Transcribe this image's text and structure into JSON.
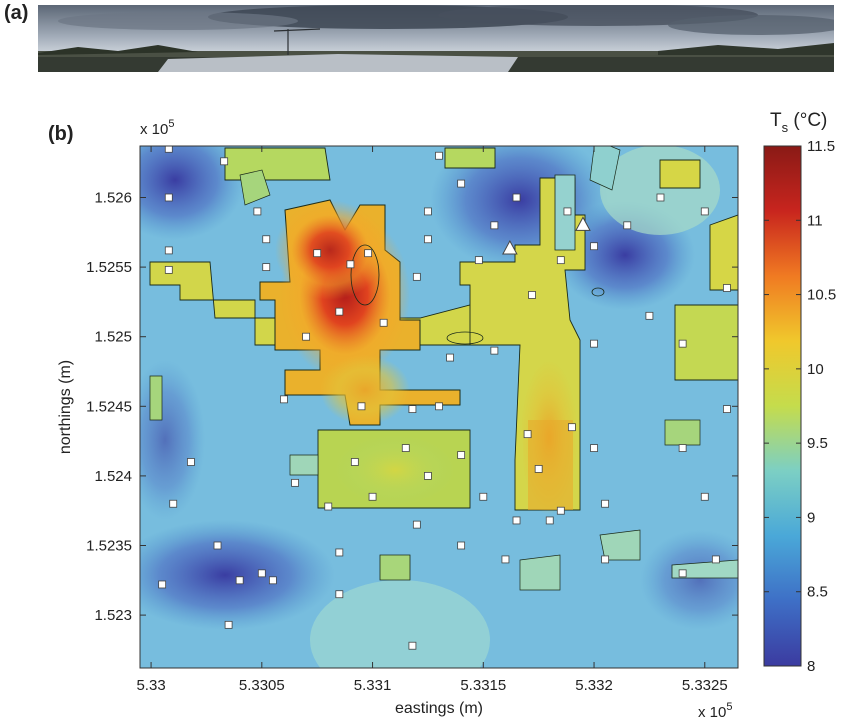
{
  "panel_a_label": "(a)",
  "panel_b_label": "(b)",
  "chart_data": {
    "type": "heatmap",
    "title": "",
    "xlabel": "eastings (m)",
    "ylabel": "northings (m)",
    "x_exponent_label": "x 10",
    "x_exponent_power": "5",
    "y_exponent_label": "x 10",
    "y_exponent_power": "5",
    "xlim": [
      5.32995,
      5.33265
    ],
    "ylim": [
      1.52262,
      1.52637
    ],
    "x_ticks": [
      5.33,
      5.3305,
      5.331,
      5.3315,
      5.332,
      5.3325
    ],
    "x_tick_labels": [
      "5.33",
      "5.3305",
      "5.331",
      "5.3315",
      "5.332",
      "5.3325"
    ],
    "y_ticks": [
      1.523,
      1.5235,
      1.524,
      1.5245,
      1.525,
      1.5255,
      1.526
    ],
    "y_tick_labels": [
      "1.523",
      "1.5235",
      "1.524",
      "1.5245",
      "1.525",
      "1.5255",
      "1.526"
    ],
    "colorbar": {
      "label_main": "T",
      "label_sub": "s",
      "label_unit": " (°C)",
      "min": 8,
      "max": 11.5,
      "ticks": [
        8,
        8.5,
        9,
        9.5,
        10,
        10.5,
        11,
        11.5
      ],
      "tick_labels": [
        "8",
        "8.5",
        "9",
        "9.5",
        "10",
        "10.5",
        "11",
        "11.5"
      ],
      "colormap": [
        "#3b3ba0",
        "#3e6fc6",
        "#4aa8d8",
        "#7ccfc4",
        "#c5dc4c",
        "#f0c82c",
        "#f07a22",
        "#c8251e",
        "#8a1a16"
      ]
    },
    "warm_core": {
      "x": 5.33093,
      "y": 1.52512,
      "value": 11.4
    },
    "stations_squares": [
      {
        "x": 5.33008,
        "y": 1.52635
      },
      {
        "x": 5.33033,
        "y": 1.52626
      },
      {
        "x": 5.33008,
        "y": 1.526
      },
      {
        "x": 5.33008,
        "y": 1.52562
      },
      {
        "x": 5.33008,
        "y": 1.52548
      },
      {
        "x": 5.33052,
        "y": 1.5257
      },
      {
        "x": 5.33048,
        "y": 1.5259
      },
      {
        "x": 5.33052,
        "y": 1.5255
      },
      {
        "x": 5.33075,
        "y": 1.5256
      },
      {
        "x": 5.3309,
        "y": 1.52552
      },
      {
        "x": 5.33098,
        "y": 1.5256
      },
      {
        "x": 5.3312,
        "y": 1.52543
      },
      {
        "x": 5.33085,
        "y": 1.52518
      },
      {
        "x": 5.33105,
        "y": 1.5251
      },
      {
        "x": 5.3307,
        "y": 1.525
      },
      {
        "x": 5.33125,
        "y": 1.5259
      },
      {
        "x": 5.3313,
        "y": 1.5263
      },
      {
        "x": 5.3314,
        "y": 1.5261
      },
      {
        "x": 5.33125,
        "y": 1.5257
      },
      {
        "x": 5.33155,
        "y": 1.5258
      },
      {
        "x": 5.33165,
        "y": 1.526
      },
      {
        "x": 5.33148,
        "y": 1.52555
      },
      {
        "x": 5.33172,
        "y": 1.5253
      },
      {
        "x": 5.33185,
        "y": 1.52555
      },
      {
        "x": 5.33188,
        "y": 1.5259
      },
      {
        "x": 5.332,
        "y": 1.52565
      },
      {
        "x": 5.33215,
        "y": 1.5258
      },
      {
        "x": 5.3323,
        "y": 1.526
      },
      {
        "x": 5.3325,
        "y": 1.5259
      },
      {
        "x": 5.3326,
        "y": 1.52535
      },
      {
        "x": 5.33225,
        "y": 1.52515
      },
      {
        "x": 5.3324,
        "y": 1.52495
      },
      {
        "x": 5.3326,
        "y": 1.52448
      },
      {
        "x": 5.332,
        "y": 1.52495
      },
      {
        "x": 5.33155,
        "y": 1.5249
      },
      {
        "x": 5.33135,
        "y": 1.52485
      },
      {
        "x": 5.3306,
        "y": 1.52455
      },
      {
        "x": 5.33095,
        "y": 1.5245
      },
      {
        "x": 5.33118,
        "y": 1.52448
      },
      {
        "x": 5.3313,
        "y": 1.5245
      },
      {
        "x": 5.33092,
        "y": 1.5241
      },
      {
        "x": 5.33115,
        "y": 1.5242
      },
      {
        "x": 5.3314,
        "y": 1.52415
      },
      {
        "x": 5.3317,
        "y": 1.5243
      },
      {
        "x": 5.3319,
        "y": 1.52435
      },
      {
        "x": 5.332,
        "y": 1.5242
      },
      {
        "x": 5.33065,
        "y": 1.52395
      },
      {
        "x": 5.3308,
        "y": 1.52378
      },
      {
        "x": 5.331,
        "y": 1.52385
      },
      {
        "x": 5.33125,
        "y": 1.524
      },
      {
        "x": 5.3315,
        "y": 1.52385
      },
      {
        "x": 5.33175,
        "y": 1.52405
      },
      {
        "x": 5.33185,
        "y": 1.52375
      },
      {
        "x": 5.33205,
        "y": 1.5238
      },
      {
        "x": 5.3324,
        "y": 1.5242
      },
      {
        "x": 5.3325,
        "y": 1.52385
      },
      {
        "x": 5.3301,
        "y": 1.5238
      },
      {
        "x": 5.33018,
        "y": 1.5241
      },
      {
        "x": 5.3303,
        "y": 1.5235
      },
      {
        "x": 5.3305,
        "y": 1.5233
      },
      {
        "x": 5.33005,
        "y": 1.52322
      },
      {
        "x": 5.3304,
        "y": 1.52325
      },
      {
        "x": 5.33055,
        "y": 1.52325
      },
      {
        "x": 5.33085,
        "y": 1.52345
      },
      {
        "x": 5.3312,
        "y": 1.52365
      },
      {
        "x": 5.3314,
        "y": 1.5235
      },
      {
        "x": 5.3316,
        "y": 1.5234
      },
      {
        "x": 5.33165,
        "y": 1.52368
      },
      {
        "x": 5.3318,
        "y": 1.52368
      },
      {
        "x": 5.33205,
        "y": 1.5234
      },
      {
        "x": 5.3324,
        "y": 1.5233
      },
      {
        "x": 5.33255,
        "y": 1.5234
      },
      {
        "x": 5.33035,
        "y": 1.52293
      },
      {
        "x": 5.33118,
        "y": 1.52278
      },
      {
        "x": 5.33085,
        "y": 1.52315
      }
    ],
    "stations_triangles": [
      {
        "x": 5.33162,
        "y": 1.52563
      },
      {
        "x": 5.33195,
        "y": 1.5258
      }
    ]
  }
}
